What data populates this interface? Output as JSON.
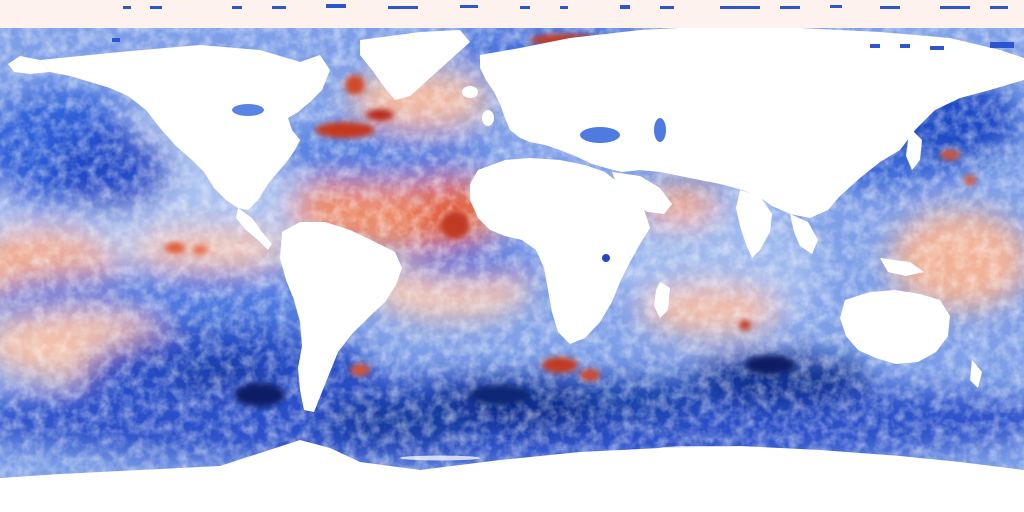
{
  "map": {
    "kind": "global sea surface anomaly field, equirectangular projection",
    "projection": "equirectangular",
    "extent": {
      "lon": [
        -180,
        180
      ],
      "lat": [
        -90,
        90
      ]
    },
    "colors": {
      "strong_negative": "#08306b",
      "negative": "#2b63d9",
      "weak_negative": "#9cb8ee",
      "neutral": "#f4f1f0",
      "weak_positive": "#f3b9a0",
      "positive": "#e0603c",
      "strong_positive": "#8b0d0d",
      "land": "#ffffff",
      "sea_ice_mask": "#fdf2ee"
    },
    "features": [
      {
        "name": "warm-anomaly-tropical-atlantic",
        "sign": "positive"
      },
      {
        "name": "warm-anomaly-gulf-stream",
        "sign": "positive"
      },
      {
        "name": "warm-anomaly-north-atlantic-subpolar",
        "sign": "positive"
      },
      {
        "name": "warm-anomaly-barents-sea",
        "sign": "positive"
      },
      {
        "name": "warm-anomaly-arabian-sea",
        "sign": "positive"
      },
      {
        "name": "warm-anomaly-eastern-pacific",
        "sign": "positive"
      },
      {
        "name": "warm-anomaly-western-pacific",
        "sign": "positive"
      },
      {
        "name": "cold-anomaly-southern-ocean",
        "sign": "negative"
      },
      {
        "name": "cold-anomaly-north-pacific",
        "sign": "negative"
      },
      {
        "name": "cold-anomaly-south-pacific",
        "sign": "negative"
      }
    ]
  }
}
